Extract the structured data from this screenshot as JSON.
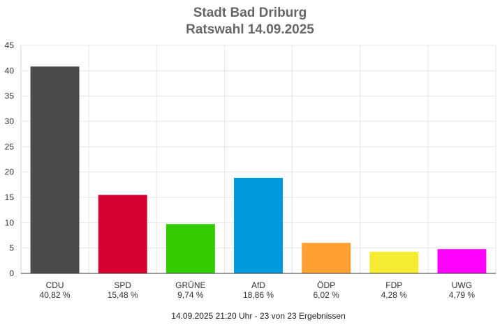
{
  "chart_data": {
    "type": "bar",
    "title_line1": "Stadt Bad Driburg",
    "title_line2": "Ratswahl 14.09.2025",
    "categories": [
      "CDU",
      "SPD",
      "GRÜNE",
      "AfD",
      "ÖDP",
      "FDP",
      "UWG"
    ],
    "percent_labels": [
      "40,82 %",
      "15,48 %",
      "9,74 %",
      "18,86 %",
      "6,02 %",
      "4,28 %",
      "4,79 %"
    ],
    "values": [
      40.82,
      15.48,
      9.74,
      18.86,
      6.02,
      4.28,
      4.79
    ],
    "colors": [
      "#4a4a4a",
      "#d6002e",
      "#33cc00",
      "#0099dd",
      "#ffa033",
      "#f5eb32",
      "#ff00ff"
    ],
    "ylim": [
      0,
      45
    ],
    "yticks": [
      0,
      5,
      10,
      15,
      20,
      25,
      30,
      35,
      40,
      45
    ],
    "grid": true,
    "footer": "14.09.2025 21:20 Uhr - 23 von 23 Ergebnissen"
  }
}
